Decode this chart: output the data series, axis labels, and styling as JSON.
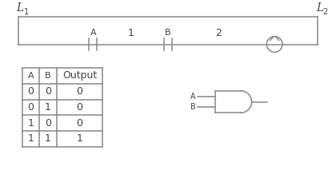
{
  "bg_color": "#ffffff",
  "line_color": "#888888",
  "text_color": "#444444",
  "table_headers": [
    "A",
    "B",
    "Output"
  ],
  "table_rows": [
    [
      "0",
      "0",
      "0"
    ],
    [
      "0",
      "1",
      "0"
    ],
    [
      "1",
      "0",
      "0"
    ],
    [
      "1",
      "1",
      "1"
    ]
  ]
}
